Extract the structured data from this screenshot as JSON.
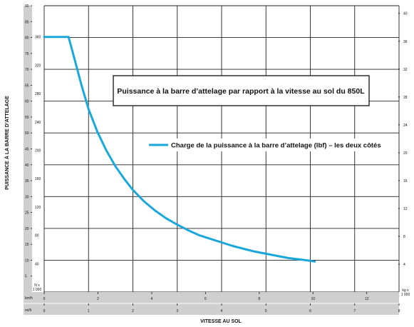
{
  "chart_data": {
    "type": "line",
    "title": "Puissance à la barre d’attelage par rapport à la vitesse au sol du 850L",
    "ylabel": "PUISSANCE À LA BARRE D’ATTELAGE",
    "xlabel": "VITESSE AU SOL",
    "legend_position": "center-right",
    "grid": true,
    "line_color": "#1aa7dc",
    "gray_strip_color": "#cfcfcf",
    "x_axis_kmh": {
      "unit": "km/h",
      "ticks": [
        "0",
        "2",
        "4",
        "6",
        "8",
        "10",
        "12"
      ],
      "range": [
        0,
        13.2
      ]
    },
    "x_axis_mph": {
      "unit": "mi/h",
      "ticks": [
        "0",
        "1",
        "2",
        "3",
        "4",
        "5",
        "6",
        "7",
        "8"
      ],
      "range": [
        0,
        8
      ]
    },
    "y_axis_kn": {
      "unit_line1": "N x",
      "unit_line2": "1 000",
      "ticks": [
        "5",
        "10",
        "15",
        "20",
        "25",
        "30",
        "35",
        "40",
        "45",
        "50",
        "55",
        "60",
        "65",
        "70",
        "75",
        "80",
        "85",
        "90"
      ],
      "range": [
        0,
        90
      ]
    },
    "y_axis_lbf": {
      "ticks": [
        "40",
        "80",
        "120",
        "160",
        "200",
        "240",
        "280",
        "320",
        "360"
      ],
      "range": [
        0,
        404
      ]
    },
    "y_axis_kg": {
      "unit_line1": "kg x",
      "unit_line2": "1 000",
      "ticks": [
        "4",
        "8",
        "12",
        "16",
        "20",
        "24",
        "28",
        "32",
        "36",
        "40"
      ],
      "range": [
        0,
        41.1
      ]
    },
    "series": [
      {
        "name": "Charge de la puissance à la barre d’attelage (lbf) – les deux côtés",
        "unit": "mi/h vs lbf x 1 000",
        "points": [
          [
            0,
            360
          ],
          [
            0.55,
            360
          ],
          [
            0.7,
            325
          ],
          [
            0.85,
            290
          ],
          [
            1.0,
            258
          ],
          [
            1.2,
            226
          ],
          [
            1.4,
            200
          ],
          [
            1.6,
            178
          ],
          [
            1.8,
            160
          ],
          [
            2.0,
            144
          ],
          [
            2.25,
            128
          ],
          [
            2.5,
            115
          ],
          [
            2.75,
            104
          ],
          [
            3.0,
            95
          ],
          [
            3.25,
            87
          ],
          [
            3.5,
            80
          ],
          [
            3.75,
            75
          ],
          [
            4.0,
            70
          ],
          [
            4.25,
            65
          ],
          [
            4.5,
            61
          ],
          [
            4.75,
            57
          ],
          [
            5.0,
            54
          ],
          [
            5.25,
            51
          ],
          [
            5.5,
            48
          ],
          [
            5.75,
            46
          ],
          [
            6.0,
            44
          ],
          [
            6.1,
            43
          ]
        ]
      }
    ]
  }
}
